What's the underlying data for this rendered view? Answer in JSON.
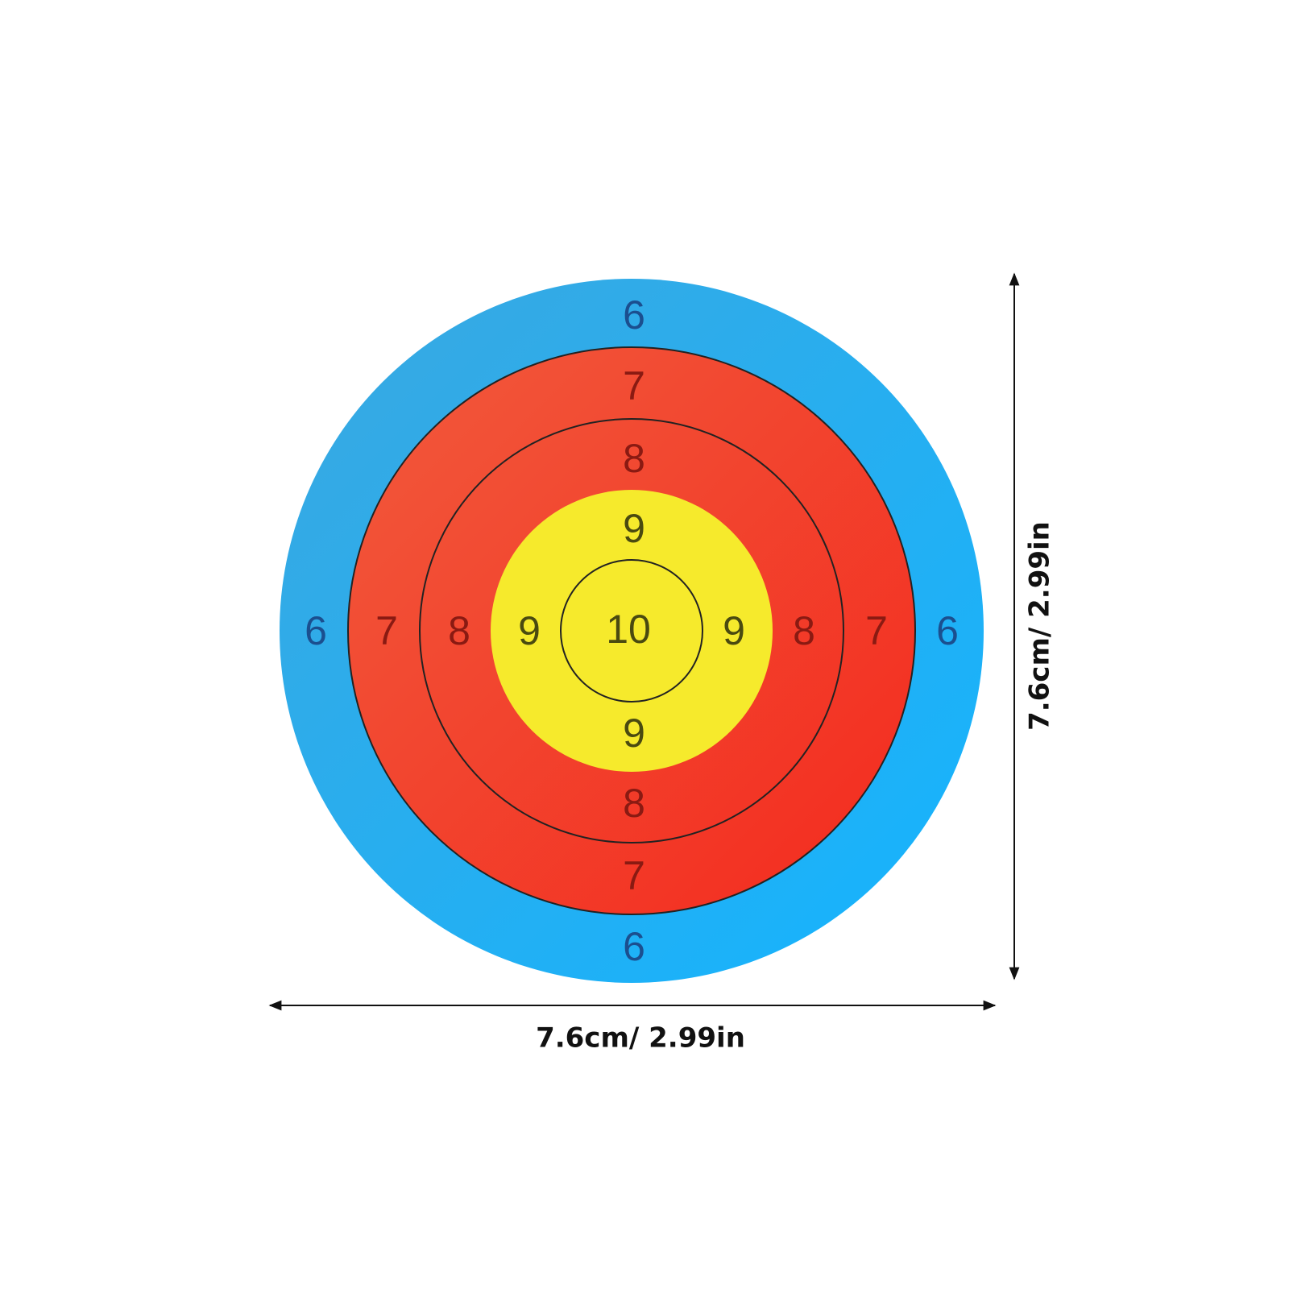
{
  "target": {
    "rings": [
      {
        "labels": [
          "6",
          "6",
          "6",
          "6"
        ]
      },
      {
        "labels": [
          "7",
          "7",
          "7",
          "7"
        ]
      },
      {
        "labels": [
          "8",
          "8",
          "8",
          "8"
        ]
      },
      {
        "labels": [
          "9",
          "9",
          "9",
          "9"
        ]
      }
    ],
    "center_label": "10"
  },
  "dimensions": {
    "width": "7.6cm/ 2.99in",
    "height": "7.6cm/ 2.99in"
  }
}
